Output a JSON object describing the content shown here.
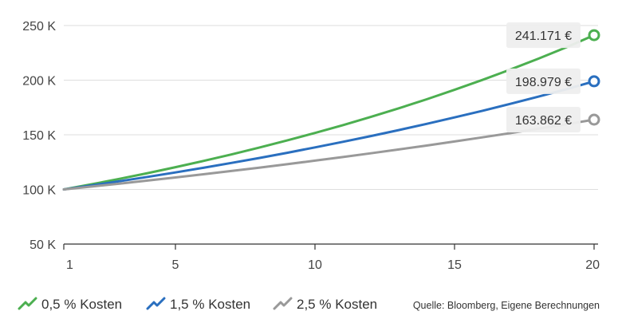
{
  "chart_data": {
    "type": "line",
    "x": [
      1,
      2,
      3,
      4,
      5,
      6,
      7,
      8,
      9,
      10,
      11,
      12,
      13,
      14,
      15,
      16,
      17,
      18,
      19,
      20
    ],
    "x_ticks": [
      1,
      5,
      10,
      15,
      20
    ],
    "ylim": [
      50000,
      250000
    ],
    "y_ticks": [
      {
        "value": 50000,
        "label": "50 K"
      },
      {
        "value": 100000,
        "label": "100 K"
      },
      {
        "value": 150000,
        "label": "150 K"
      },
      {
        "value": 200000,
        "label": "200 K"
      },
      {
        "value": 250000,
        "label": "250 K"
      }
    ],
    "grid": true,
    "series": [
      {
        "name": "0,5 % Kosten",
        "color": "#4caf50",
        "values": [
          100000,
          104737,
          109698,
          114894,
          120336,
          126036,
          132006,
          138259,
          144808,
          151667,
          158851,
          166376,
          174257,
          182511,
          191156,
          200210,
          209694,
          219627,
          230030,
          241171
        ],
        "end_label": "241.171 €"
      },
      {
        "name": "1,5 % Kosten",
        "color": "#2a6fbf",
        "values": [
          100000,
          103681,
          107498,
          111455,
          115558,
          119812,
          124222,
          128795,
          133536,
          138452,
          143549,
          148833,
          154312,
          159993,
          165882,
          171989,
          178320,
          184884,
          191690,
          198979
        ],
        "end_label": "198.979 €"
      },
      {
        "name": "2,5 % Kosten",
        "color": "#999999",
        "values": [
          100000,
          102632,
          105333,
          108105,
          110950,
          113870,
          116867,
          119943,
          123100,
          126340,
          129665,
          133077,
          136580,
          140174,
          143864,
          147650,
          151536,
          155524,
          159617,
          163862
        ],
        "end_label": "163.862 €"
      }
    ],
    "source": "Quelle: Bloomberg, Eigene Berechnungen",
    "legend_position": "bottom-left"
  }
}
